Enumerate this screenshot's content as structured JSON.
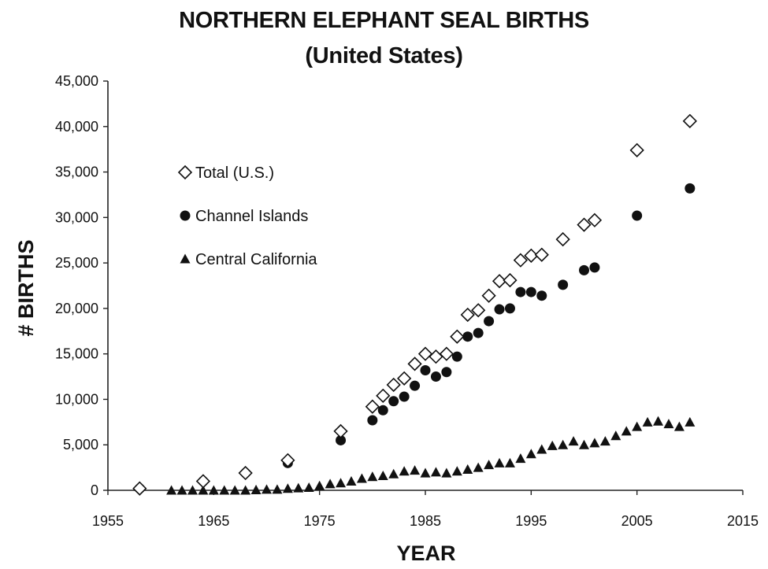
{
  "chart_data": {
    "type": "scatter",
    "title": "NORTHERN ELEPHANT SEAL BIRTHS",
    "subtitle": "(United States)",
    "xlabel": "YEAR",
    "ylabel": "# BIRTHS",
    "xlim": [
      1955,
      2015
    ],
    "ylim": [
      0,
      45000
    ],
    "x_ticks": [
      "1955",
      "1965",
      "1975",
      "1985",
      "1995",
      "2005",
      "2015"
    ],
    "y_ticks": [
      "0",
      "5,000",
      "10,000",
      "15,000",
      "20,000",
      "25,000",
      "30,000",
      "35,000",
      "40,000",
      "45,000"
    ],
    "legend_position": "upper-left",
    "grid": false,
    "series": [
      {
        "name": "Total (U.S.)",
        "marker": "diamond-open",
        "x": [
          1958,
          1964,
          1968,
          1972,
          1977,
          1980,
          1981,
          1982,
          1983,
          1984,
          1985,
          1986,
          1987,
          1988,
          1989,
          1990,
          1991,
          1992,
          1993,
          1994,
          1995,
          1996,
          1998,
          2000,
          2001,
          2005,
          2010
        ],
        "y": [
          200,
          1000,
          1900,
          3300,
          6500,
          9200,
          10400,
          11600,
          12300,
          13900,
          15000,
          14700,
          15000,
          16900,
          19300,
          19800,
          21400,
          23000,
          23100,
          25300,
          25800,
          25900,
          27600,
          29200,
          29700,
          37400,
          40600
        ]
      },
      {
        "name": "Channel Islands",
        "marker": "circle-filled",
        "x": [
          1958,
          1964,
          1968,
          1972,
          1977,
          1980,
          1981,
          1982,
          1983,
          1984,
          1985,
          1986,
          1987,
          1988,
          1989,
          1990,
          1991,
          1992,
          1993,
          1994,
          1995,
          1996,
          1998,
          2000,
          2001,
          2005,
          2010
        ],
        "y": [
          200,
          1000,
          1900,
          3000,
          5500,
          7700,
          8800,
          9800,
          10300,
          11500,
          13200,
          12500,
          13000,
          14700,
          16900,
          17300,
          18600,
          19900,
          20000,
          21800,
          21800,
          21400,
          22600,
          24200,
          24500,
          30200,
          33200
        ]
      },
      {
        "name": "Central California",
        "marker": "triangle-filled",
        "x": [
          1961,
          1962,
          1963,
          1964,
          1965,
          1966,
          1967,
          1968,
          1969,
          1970,
          1971,
          1972,
          1973,
          1974,
          1975,
          1976,
          1977,
          1978,
          1979,
          1980,
          1981,
          1982,
          1983,
          1984,
          1985,
          1986,
          1987,
          1988,
          1989,
          1990,
          1991,
          1992,
          1993,
          1994,
          1995,
          1996,
          1997,
          1998,
          1999,
          2000,
          2001,
          2002,
          2003,
          2004,
          2005,
          2006,
          2007,
          2008,
          2009,
          2010
        ],
        "y": [
          0,
          0,
          0,
          0,
          0,
          0,
          0,
          0,
          50,
          100,
          100,
          200,
          250,
          300,
          500,
          700,
          800,
          1000,
          1300,
          1500,
          1600,
          1800,
          2100,
          2200,
          1900,
          2000,
          1900,
          2100,
          2300,
          2500,
          2800,
          3000,
          3000,
          3500,
          4000,
          4500,
          4900,
          5000,
          5400,
          5000,
          5200,
          5400,
          6000,
          6500,
          7000,
          7500,
          7600,
          7300,
          7000,
          7500
        ]
      }
    ]
  }
}
